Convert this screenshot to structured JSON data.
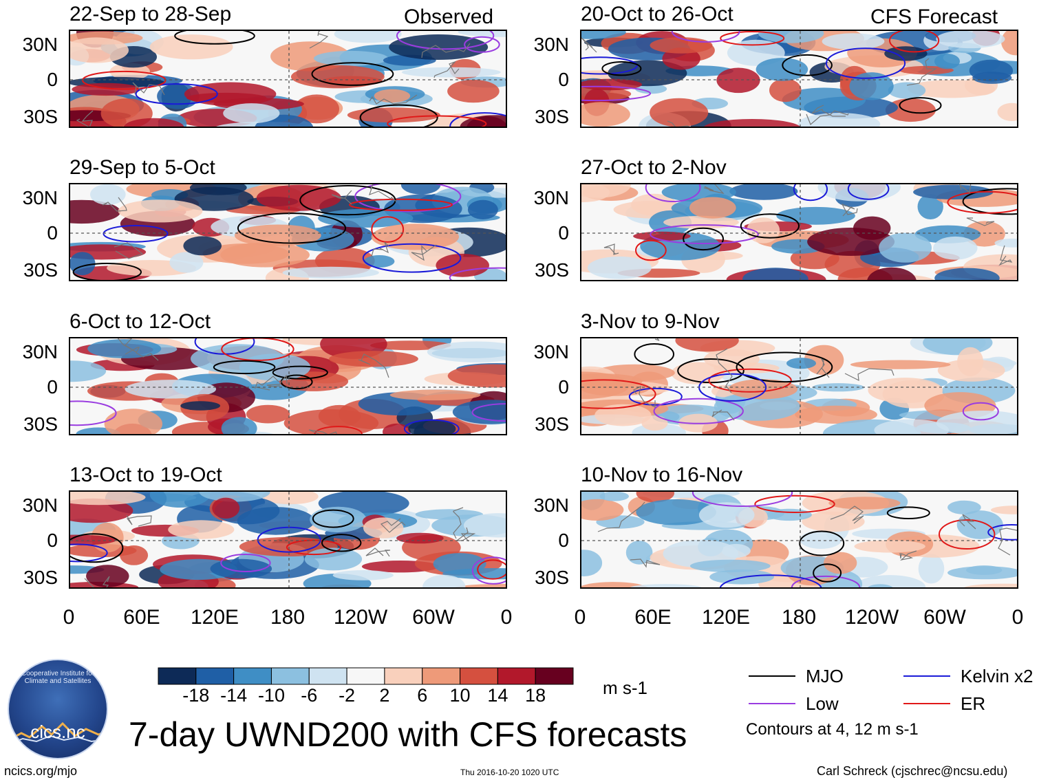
{
  "header": {
    "observed_label": "Observed",
    "forecast_label": "CFS Forecast"
  },
  "chart_data": {
    "type": "heatmap",
    "title": "7-day UWND200 with CFS forecasts",
    "variable": "200-hPa zonal wind anomaly",
    "units": "m s-1",
    "lat_ticks": [
      "30N",
      "0",
      "30S"
    ],
    "lon_ticks": [
      "0",
      "60E",
      "120E",
      "180",
      "120W",
      "60W",
      "0"
    ],
    "colorbar": {
      "levels": [
        "-18",
        "-14",
        "-10",
        "-6",
        "-2",
        "2",
        "6",
        "10",
        "14",
        "18"
      ],
      "colors": [
        "#0d2a57",
        "#1f5fa6",
        "#3f8ec5",
        "#8cc0e0",
        "#cfe3f1",
        "#f7f7f7",
        "#f9d0bc",
        "#ee9a79",
        "#d5503f",
        "#b2182b",
        "#67001f"
      ]
    },
    "panels": [
      {
        "column": "observed",
        "period": "22-Sep to 28-Sep"
      },
      {
        "column": "observed",
        "period": "29-Sep to 5-Oct"
      },
      {
        "column": "observed",
        "period": "6-Oct to 12-Oct"
      },
      {
        "column": "observed",
        "period": "13-Oct to 19-Oct"
      },
      {
        "column": "forecast",
        "period": "20-Oct to 26-Oct"
      },
      {
        "column": "forecast",
        "period": "27-Oct to 2-Nov"
      },
      {
        "column": "forecast",
        "period": "3-Nov to 9-Nov"
      },
      {
        "column": "forecast",
        "period": "10-Nov to 16-Nov"
      }
    ],
    "legend": [
      {
        "label": "MJO",
        "color": "#000000"
      },
      {
        "label": "Kelvin x2",
        "color": "#1a1ad8"
      },
      {
        "label": "Low",
        "color": "#9a3ce0"
      },
      {
        "label": "ER",
        "color": "#e01818"
      }
    ],
    "contour_note": "Contours at 4, 12 m s-1"
  },
  "logo": {
    "text": "cics.nc",
    "ring_text": "Cooperative Institute for Climate and Satellites"
  },
  "footer": {
    "website": "ncics.org/mjo",
    "timestamp": "Thu 2016-10-20 1020 UTC",
    "author": "Carl Schreck (cjschrec@ncsu.edu)"
  }
}
